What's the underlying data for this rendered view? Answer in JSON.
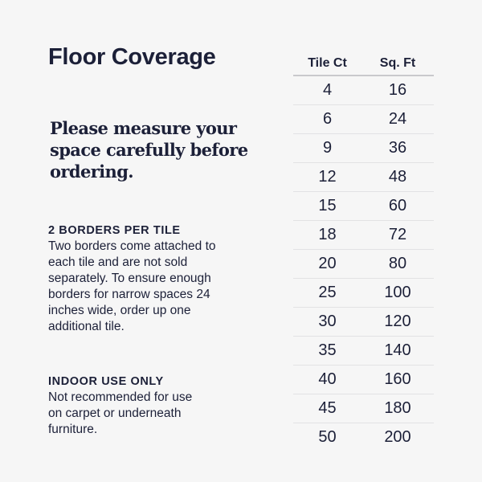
{
  "title": "Floor Coverage",
  "lead": "Please measure your space carefully before ordering.",
  "sections": [
    {
      "heading": "2 BORDERS PER TILE",
      "body": "Two borders come attached to each tile and are not sold separately. To ensure enough borders for narrow spaces 24 inches wide, order up one additional tile."
    },
    {
      "heading": "INDOOR USE ONLY",
      "body": "Not recommended for use on carpet or underneath furniture."
    }
  ],
  "table": {
    "headers": [
      "Tile Ct",
      "Sq. Ft"
    ],
    "rows": [
      [
        "4",
        "16"
      ],
      [
        "6",
        "24"
      ],
      [
        "9",
        "36"
      ],
      [
        "12",
        "48"
      ],
      [
        "15",
        "60"
      ],
      [
        "18",
        "72"
      ],
      [
        "20",
        "80"
      ],
      [
        "25",
        "100"
      ],
      [
        "30",
        "120"
      ],
      [
        "35",
        "140"
      ],
      [
        "40",
        "160"
      ],
      [
        "45",
        "180"
      ],
      [
        "50",
        "200"
      ]
    ]
  },
  "colors": {
    "text": "#1c2038",
    "background": "#f6f6f6"
  }
}
